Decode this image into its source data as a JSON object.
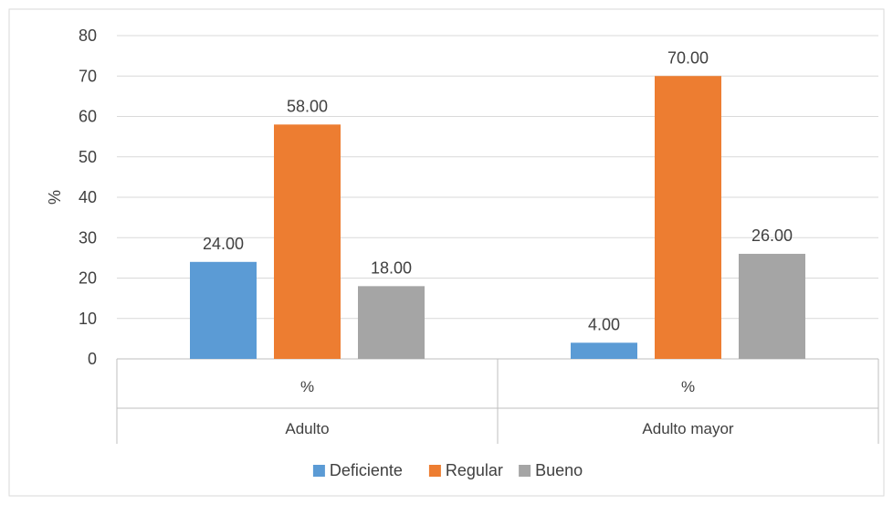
{
  "chart_data": {
    "type": "bar",
    "title": "",
    "ylabel": "%",
    "xlabel": "",
    "ylim": [
      0,
      80
    ],
    "yticks": [
      0,
      10,
      20,
      30,
      40,
      50,
      60,
      70,
      80
    ],
    "grid": true,
    "legend_position": "bottom",
    "groups": [
      {
        "sublabel": "%",
        "label": "Adulto"
      },
      {
        "sublabel": "%",
        "label": "Adulto mayor"
      }
    ],
    "series": [
      {
        "name": "Deficiente",
        "color": "#5B9BD5",
        "values": [
          24,
          4
        ],
        "labels": [
          "24.00",
          "4.00"
        ]
      },
      {
        "name": "Regular",
        "color": "#ED7D31",
        "values": [
          58,
          70
        ],
        "labels": [
          "58.00",
          "70.00"
        ]
      },
      {
        "name": "Bueno",
        "color": "#A5A5A5",
        "values": [
          18,
          26
        ],
        "labels": [
          "18.00",
          "26.00"
        ]
      }
    ]
  }
}
